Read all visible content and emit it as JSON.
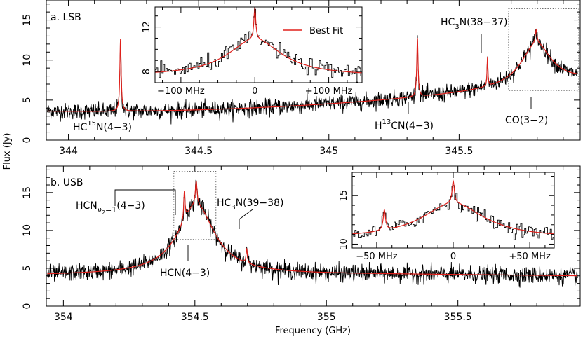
{
  "chart_data": {
    "type": "line",
    "y_axis_label": "Flux (Jy)",
    "x_axis_label": "Frequency (GHz)",
    "legend": {
      "fit_label": "Best Fit",
      "fit_color": "#e0201b",
      "data_color": "#000000"
    },
    "panels": [
      {
        "id": "lsb",
        "title": "a. LSB",
        "xlim": [
          343.915,
          345.965
        ],
        "ylim": [
          0,
          17.5
        ],
        "x_ticks": [
          344,
          344.5,
          345,
          345.5
        ],
        "x_tick_labels": [
          "344",
          "344.5",
          "345",
          "345.5"
        ],
        "y_ticks": [
          0,
          5,
          10,
          15
        ],
        "y_tick_labels": [
          "0",
          "5",
          "10",
          "15"
        ],
        "noise_rms": 0.5,
        "continuum": {
          "type": "quadratic",
          "anchors": [
            [
              344.0,
              3.6
            ],
            [
              345.0,
              4.5
            ],
            [
              345.9,
              7.2
            ]
          ]
        },
        "broad_component": {
          "center": 345.796,
          "amplitude": 5.3,
          "hwhm": 0.07
        },
        "lines": [
          {
            "label": "HC15N(4-3)",
            "freq": 344.2,
            "peak": 12.7,
            "width": 0.003
          },
          {
            "label": "H13CN(4-3)",
            "freq": 345.34,
            "peak": 12.8,
            "width": 0.003
          },
          {
            "label": "HC3N(38-37)",
            "freq": 345.609,
            "peak": 10.4,
            "width": 0.002
          },
          {
            "label": "CO(3-2)",
            "freq": 345.796,
            "peak": 13.8,
            "width": 0.004
          }
        ],
        "labels": {
          "hc15n": {
            "pre": "HC",
            "sup": "15",
            "post": "N(4−3)"
          },
          "h13cn": {
            "pre": "H",
            "sup": "13",
            "post": "CN(4−3)"
          },
          "hc3n": {
            "pre": "HC",
            "sub": "3",
            "post": "N(38−37)"
          },
          "co": "CO(3−2)"
        },
        "zoom_box": {
          "x": [
            345.69,
            345.965
          ],
          "y": [
            6.2,
            16.4
          ]
        },
        "inset": {
          "xlim": [
            -135,
            145
          ],
          "ylim": [
            7,
            13.8
          ],
          "x_ticks": [
            -100,
            0,
            100
          ],
          "x_tick_labels": [
            "−100 MHz",
            "0",
            "+100 MHz"
          ],
          "y_ticks": [
            8,
            12
          ],
          "y_tick_labels": [
            "8",
            "12"
          ],
          "baseline": 7.6,
          "broad_amplitude": 3.3,
          "broad_hwhm": 45,
          "narrow_amplitude": 2.9,
          "narrow_width": 1.5,
          "noise_rms": 0.35
        }
      },
      {
        "id": "usb",
        "title": "b. USB",
        "xlim": [
          353.935,
          355.965
        ],
        "ylim": [
          0,
          18.5
        ],
        "x_ticks": [
          354,
          354.5,
          355,
          355.5
        ],
        "x_tick_labels": [
          "354",
          "354.5",
          "355",
          "355.5"
        ],
        "y_ticks": [
          0,
          5,
          10,
          15
        ],
        "y_tick_labels": [
          "0",
          "5",
          "10",
          "15"
        ],
        "noise_rms": 0.55,
        "continuum": {
          "type": "quadratic",
          "anchors": [
            [
              354.0,
              4.1
            ],
            [
              355.0,
              4.2
            ],
            [
              355.9,
              4.0
            ]
          ]
        },
        "broad_component": {
          "center": 354.505,
          "amplitude": 9.2,
          "hwhm": 0.085
        },
        "lines": [
          {
            "label": "HCNv2=1(4-3)",
            "freq": 354.46,
            "peak": 15.2,
            "width": 0.003
          },
          {
            "label": "HCN(4-3)",
            "freq": 354.505,
            "peak": 16.5,
            "width": 0.004
          },
          {
            "label": "HC3N(39-38)",
            "freq": 354.697,
            "peak": 7.6,
            "width": 0.003
          }
        ],
        "labels": {
          "hcn_v2": {
            "pre": "HCN",
            "sub": "ν",
            "subsub": "2",
            "subpost": "=1",
            "post": "(4−3)"
          },
          "hc3n": {
            "pre": "HC",
            "sub": "3",
            "post": "N(39−38)"
          },
          "hcn": "HCN(4−3)"
        },
        "zoom_box": {
          "x": [
            354.42,
            354.58
          ],
          "y": [
            8.8,
            17.8
          ]
        },
        "inset": {
          "xlim": [
            -66,
            66
          ],
          "ylim": [
            9.6,
            17.4
          ],
          "x_ticks": [
            -50,
            0,
            50
          ],
          "x_tick_labels": [
            "−50 MHz",
            "0",
            "+50 MHz"
          ],
          "y_ticks": [
            10,
            15
          ],
          "y_tick_labels": [
            "10",
            "15"
          ],
          "baseline": 10.6,
          "broad_amplitude": 3.6,
          "broad_hwhm": 25,
          "narrow_amplitude": 2.3,
          "narrow_width": 0.9,
          "sat_offset": -45,
          "sat_amplitude": 2.1,
          "noise_rms": 0.35
        }
      }
    ]
  }
}
